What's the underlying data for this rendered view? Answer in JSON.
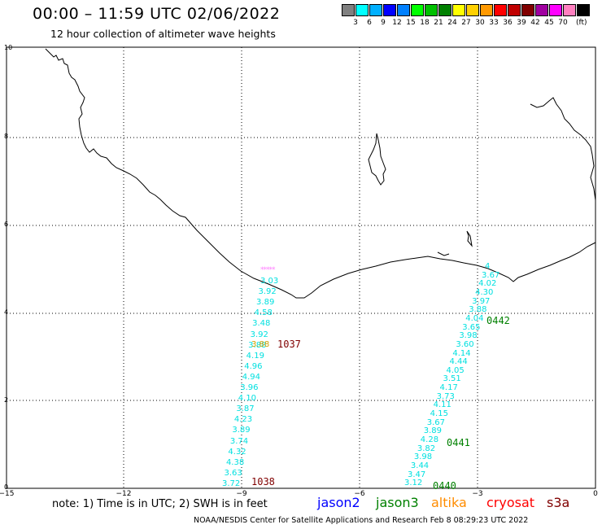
{
  "header": {
    "title": "00:00 – 11:59 UTC 02/06/2022",
    "subtitle": "12 hour collection of altimeter wave heights"
  },
  "color_scale": {
    "colors": [
      "#808080",
      "#00ffff",
      "#00b0ff",
      "#0000ff",
      "#0080ff",
      "#00ff00",
      "#00c000",
      "#008000",
      "#ffff00",
      "#ffd000",
      "#ff9900",
      "#ff0000",
      "#c00000",
      "#800000",
      "#a000a0",
      "#ff00ff",
      "#ff80c0",
      "#000000"
    ],
    "labels": [
      "3",
      "6",
      "9",
      "12",
      "15",
      "18",
      "21",
      "24",
      "27",
      "30",
      "33",
      "36",
      "39",
      "42",
      "45",
      "70"
    ],
    "unit": "(ft)"
  },
  "axes": {
    "x_ticks": [
      "−15",
      "−12",
      "−9",
      "−6",
      "−3",
      "0"
    ],
    "y_ticks": [
      "0",
      "2",
      "4",
      "6",
      "8",
      "10"
    ]
  },
  "track_a": {
    "header": "*****",
    "values": [
      "3.03",
      "3.92",
      "3.89",
      "4.58",
      "3.48",
      "3.92",
      "3.88",
      "4.19",
      "4.96",
      "4.94",
      "3.96",
      "4.10",
      "3.87",
      "4.23",
      "3.89",
      "3.74",
      "4.32",
      "4.38",
      "3.63",
      "3.72"
    ],
    "overlap": "3.88"
  },
  "track_b": {
    "values": [
      "4",
      "3.67",
      "4.02",
      "4.30",
      "3.97",
      "3.88",
      "4.04",
      "3.65",
      "3.98",
      "3.60",
      "4.14",
      "4.44",
      "4.05",
      "3.51",
      "4.17",
      "3.73",
      "4.11",
      "4.15",
      "3.67",
      "3.89",
      "4.28",
      "3.82",
      "3.98",
      "3.44",
      "3.47",
      "3.12"
    ]
  },
  "stations": [
    {
      "id": "1037",
      "color": "#800000"
    },
    {
      "id": "1038",
      "color": "#800000"
    },
    {
      "id": "0442",
      "color": "#008000"
    },
    {
      "id": "0441",
      "color": "#008000"
    },
    {
      "id": "0440",
      "color": "#008000"
    }
  ],
  "footer": {
    "note": "note:  1) Time is in UTC;  2) SWH is in feet",
    "satellites": [
      {
        "name": "jason2",
        "color": "#0000ff"
      },
      {
        "name": "jason3",
        "color": "#008000"
      },
      {
        "name": "altika",
        "color": "#ff8c00"
      },
      {
        "name": "cryosat",
        "color": "#ff0000"
      },
      {
        "name": "s3a",
        "color": "#800000"
      }
    ],
    "credit": "NOAA/NESDIS Center for Satellite Applications and Research    Feb  8 08:29:23 UTC 2022"
  }
}
